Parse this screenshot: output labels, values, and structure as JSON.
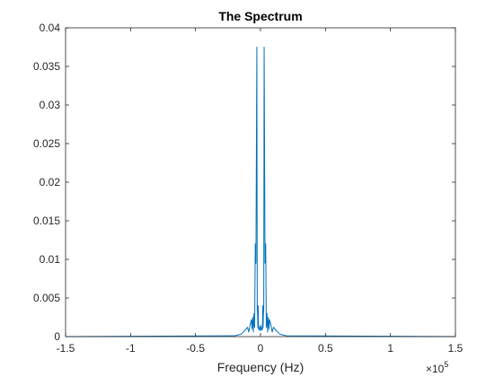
{
  "chart_data": {
    "type": "line",
    "title": "The Spectrum",
    "xlabel": "Frequency (Hz)",
    "ylabel": "",
    "xlim": [
      -150000,
      150000
    ],
    "ylim": [
      0,
      0.04
    ],
    "grid": false,
    "x_ticks": [
      -150000,
      -100000,
      -50000,
      0,
      50000,
      100000,
      150000
    ],
    "x_tick_labels": [
      "-1.5",
      "-1",
      "-0.5",
      "0",
      "0.5",
      "1",
      "1.5"
    ],
    "x_exponent_label": "×10",
    "x_exponent": "5",
    "y_ticks": [
      0,
      0.005,
      0.01,
      0.015,
      0.02,
      0.025,
      0.03,
      0.035,
      0.04
    ],
    "y_tick_labels": [
      "0",
      "0.005",
      "0.01",
      "0.015",
      "0.02",
      "0.025",
      "0.03",
      "0.035",
      "0.04"
    ],
    "series": [
      {
        "color": "#0072BD",
        "x": [
          -150000,
          -20000,
          -15000,
          -12000,
          -10000,
          -9000,
          -8000,
          -7000,
          -6500,
          -6000,
          -5500,
          -5000,
          -4500,
          -4000,
          -3500,
          -3000,
          -2800,
          -2500,
          -2200,
          -2000,
          -1800,
          -1500,
          -1000,
          -500,
          0,
          500,
          1000,
          1500,
          1800,
          2000,
          2200,
          2500,
          2800,
          3000,
          3500,
          4000,
          4500,
          5000,
          5500,
          6000,
          6500,
          7000,
          8000,
          9000,
          10000,
          12000,
          15000,
          20000,
          150000
        ],
        "y": [
          0,
          0.0001,
          0.0003,
          0.0008,
          0.0012,
          0.0006,
          0.0015,
          0.0022,
          0.001,
          0.0025,
          0.0006,
          0.003,
          0.0012,
          0.012,
          0.0095,
          0.03,
          0.0375,
          0.0035,
          0.0028,
          0.0012,
          0.004,
          0.0009,
          0.0012,
          0.0008,
          0.0015,
          0.0008,
          0.0012,
          0.0009,
          0.004,
          0.0012,
          0.0028,
          0.0035,
          0.0375,
          0.03,
          0.0095,
          0.012,
          0.0012,
          0.003,
          0.0006,
          0.0025,
          0.001,
          0.0022,
          0.0015,
          0.0006,
          0.0012,
          0.0008,
          0.0003,
          0.0001,
          0
        ]
      }
    ]
  }
}
